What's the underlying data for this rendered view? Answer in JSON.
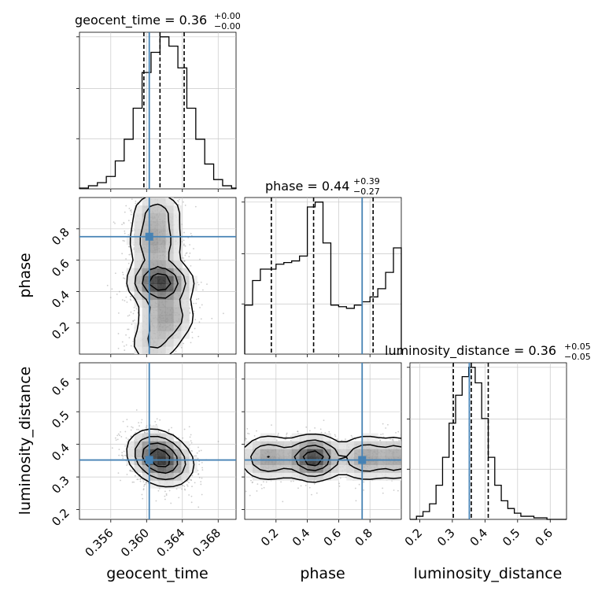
{
  "chart_data": {
    "type": "corner",
    "colors": {
      "truth": "#4682b4",
      "hist": "#000000",
      "density": "#000000",
      "scatter": "#9a9a9a",
      "grid": "#c8c8c8"
    },
    "parameters": [
      {
        "name": "geocent_time",
        "label": "geocent_time",
        "title": "geocent_time = 0.36",
        "title_plus": "+0.00",
        "title_minus": "−0.00",
        "range": [
          0.3525,
          0.37
        ],
        "ticks": [
          0.356,
          0.36,
          0.364,
          0.368
        ],
        "tick_labels": [
          "0.356",
          "0.360",
          "0.364",
          "0.368"
        ],
        "truth": 0.3603,
        "quantiles": [
          0.3597,
          0.3615,
          0.3642
        ],
        "hist_edges": [
          0.3525,
          0.3535,
          0.3545,
          0.3555,
          0.3565,
          0.3575,
          0.3585,
          0.3595,
          0.3605,
          0.3615,
          0.3625,
          0.3635,
          0.3645,
          0.3655,
          0.3665,
          0.3675,
          0.3685,
          0.3695,
          0.37
        ],
        "hist_counts": [
          0.5,
          2,
          4,
          8,
          18,
          32,
          52,
          75,
          88,
          98,
          92,
          78,
          52,
          32,
          16,
          6,
          2,
          0.5
        ]
      },
      {
        "name": "phase",
        "label": "phase",
        "title": "phase = 0.44",
        "title_plus": "+0.39",
        "title_minus": "−0.27",
        "range": [
          0.0,
          1.0
        ],
        "ticks": [
          0.2,
          0.4,
          0.6,
          0.8
        ],
        "tick_labels": [
          "0.2",
          "0.4",
          "0.6",
          "0.8"
        ],
        "truth": 0.75,
        "quantiles": [
          0.17,
          0.44,
          0.82
        ],
        "hist_edges": [
          0.0,
          0.05,
          0.1,
          0.15,
          0.2,
          0.25,
          0.3,
          0.35,
          0.4,
          0.45,
          0.5,
          0.55,
          0.6,
          0.65,
          0.7,
          0.75,
          0.8,
          0.85,
          0.9,
          0.95,
          1.0
        ],
        "hist_counts": [
          30,
          45,
          52,
          52,
          55,
          56,
          57,
          60,
          90,
          93,
          68,
          30,
          29,
          28,
          30,
          32,
          35,
          40,
          50,
          65
        ]
      },
      {
        "name": "luminosity_distance",
        "label": "luminosity_distance",
        "title": "luminosity_distance = 0.36",
        "title_plus": "+0.05",
        "title_minus": "−0.05",
        "range": [
          0.17,
          0.65
        ],
        "ticks": [
          0.2,
          0.3,
          0.4,
          0.5,
          0.6
        ],
        "tick_labels": [
          "0.2",
          "0.3",
          "0.4",
          "0.5",
          "0.6"
        ],
        "truth": 0.352,
        "quantiles": [
          0.303,
          0.358,
          0.41
        ],
        "hist_edges": [
          0.17,
          0.19,
          0.21,
          0.23,
          0.25,
          0.27,
          0.29,
          0.31,
          0.33,
          0.35,
          0.37,
          0.39,
          0.41,
          0.43,
          0.45,
          0.47,
          0.49,
          0.51,
          0.53,
          0.55,
          0.57,
          0.59,
          0.61,
          0.63,
          0.65
        ],
        "hist_counts": [
          0,
          2,
          5,
          10,
          22,
          40,
          62,
          80,
          92,
          98,
          88,
          65,
          40,
          22,
          12,
          7,
          4,
          2,
          2,
          1,
          1,
          0,
          0,
          0
        ]
      }
    ],
    "pairs": [
      {
        "x": "geocent_time",
        "y": "phase"
      },
      {
        "x": "geocent_time",
        "y": "luminosity_distance"
      },
      {
        "x": "phase",
        "y": "luminosity_distance"
      }
    ]
  }
}
